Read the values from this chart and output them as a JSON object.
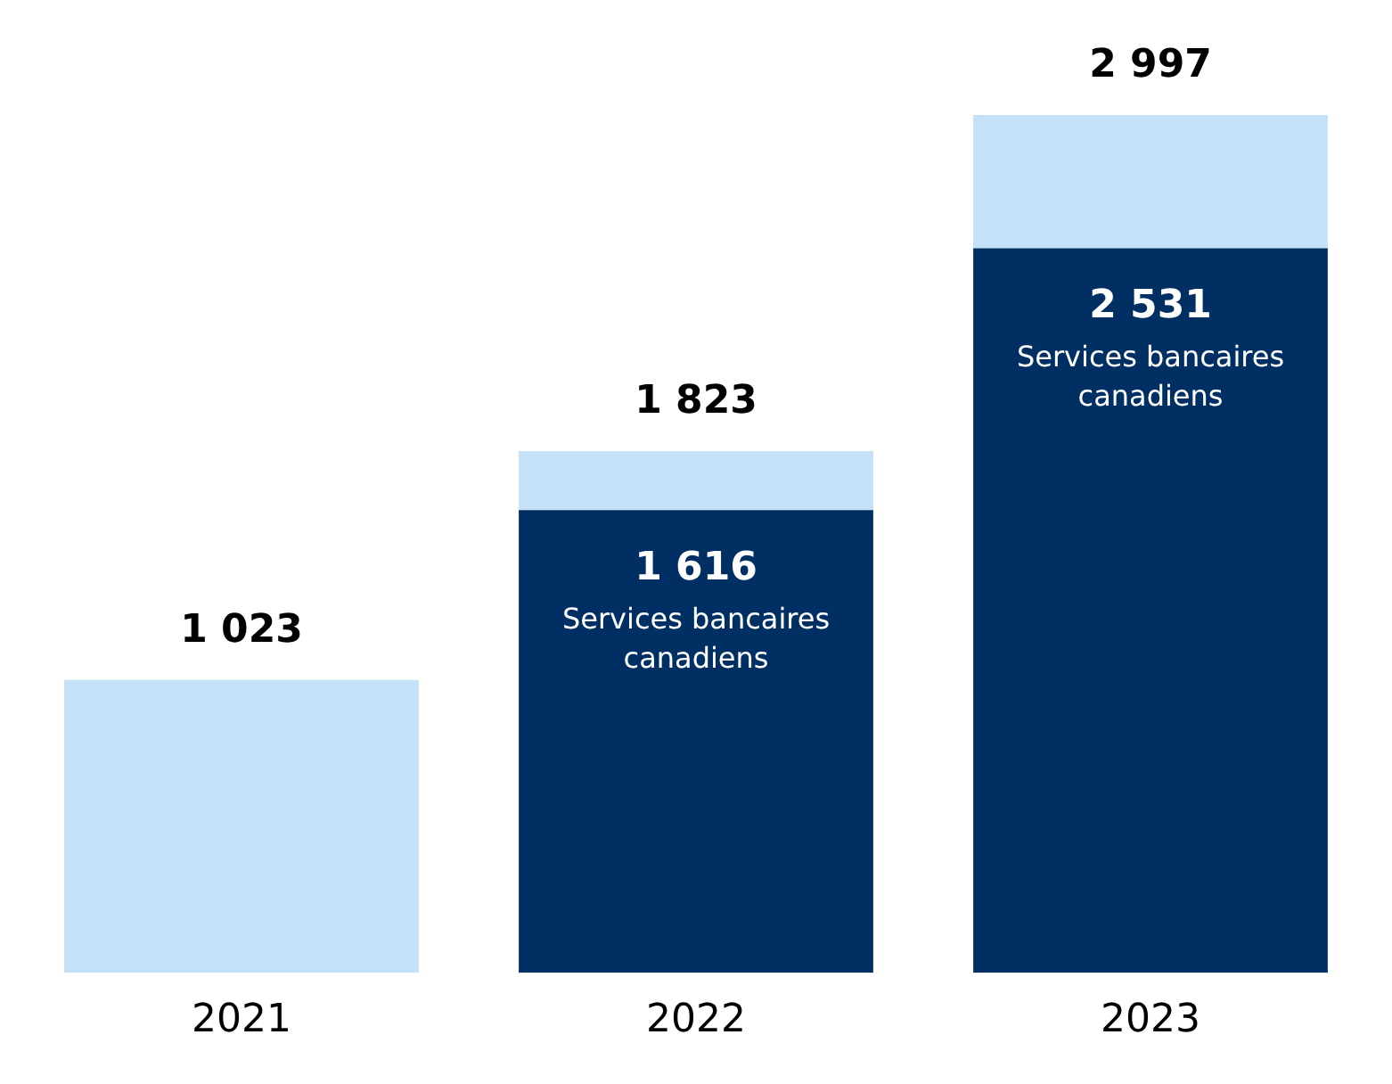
{
  "chart_data": {
    "type": "bar",
    "stacked": true,
    "categories": [
      "2021",
      "2022",
      "2023"
    ],
    "series": [
      {
        "name": "Services bancaires canadiens",
        "color": "#003063",
        "values": [
          null,
          1616,
          2531
        ],
        "value_labels": [
          null,
          "1 616",
          "2 531"
        ]
      },
      {
        "color": "#c5e1f7",
        "values": [
          1023,
          207,
          466
        ]
      }
    ],
    "totals": [
      "1 023",
      "1 823",
      "2 997"
    ],
    "legend": false
  }
}
